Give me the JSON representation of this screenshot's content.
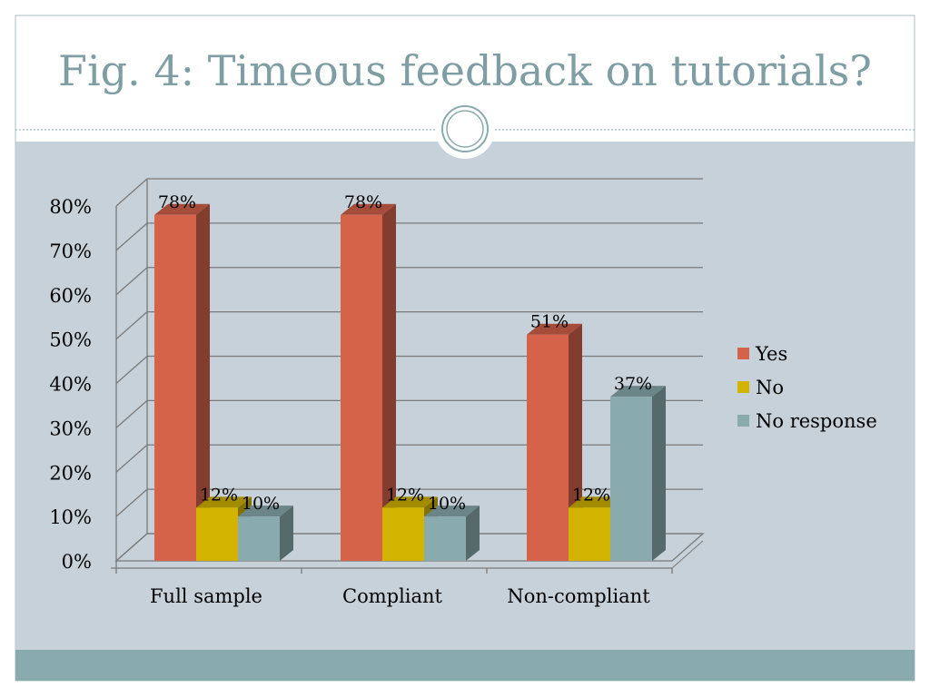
{
  "slide": {
    "title": "Fig. 4: Timeous feedback on tutorials?"
  },
  "colors": {
    "panel_bg": "#c6d1d9",
    "footer_band": "#8aabae",
    "yes": "#d4634a",
    "no": "#d2b400",
    "no_response": "#8aabae",
    "frame_line": "#7a7a7a"
  },
  "chart_data": {
    "type": "bar",
    "categories": [
      "Full sample",
      "Compliant",
      "Non-compliant"
    ],
    "series": [
      {
        "name": "Yes",
        "values": [
          78,
          78,
          51
        ],
        "labels": [
          "78%",
          "78%",
          "51%"
        ]
      },
      {
        "name": "No",
        "values": [
          12,
          12,
          12
        ],
        "labels": [
          "12%",
          "12%",
          "12%"
        ]
      },
      {
        "name": "No response",
        "values": [
          10,
          10,
          37
        ],
        "labels": [
          "10%",
          "10%",
          "37%"
        ]
      }
    ],
    "yticks": [
      "0%",
      "10%",
      "20%",
      "30%",
      "40%",
      "50%",
      "60%",
      "70%",
      "80%"
    ],
    "ylim": [
      0,
      80
    ],
    "grid": true,
    "legend": "right",
    "three_d": true
  }
}
